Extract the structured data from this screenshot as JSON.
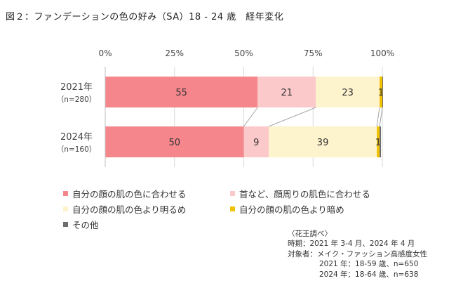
{
  "title": "図２：ファンデーションの色の好み（SA）18 - 24 歳　経年変化",
  "chart_data": {
    "type": "bar",
    "orientation": "horizontal",
    "stacked": true,
    "xlim": [
      0,
      100
    ],
    "x_ticks": [
      "0%",
      "25%",
      "50%",
      "75%",
      "100%"
    ],
    "tick_values": [
      0,
      25,
      50,
      75,
      100
    ],
    "categories": [
      {
        "year": "2021年",
        "n": "（n=280）"
      },
      {
        "year": "2024年",
        "n": "（n=160）"
      }
    ],
    "series": [
      {
        "name": "自分の顔の肌の色に合わせる",
        "color": "#f4868c",
        "values": [
          55,
          50
        ],
        "labels": [
          "55",
          "50"
        ]
      },
      {
        "name": "首など、顔周りの肌色に合わせる",
        "color": "#fcc9cb",
        "values": [
          21,
          9
        ],
        "labels": [
          "21",
          "9"
        ]
      },
      {
        "name": "自分の顔の肌の色より明るめ",
        "color": "#fdf3cd",
        "values": [
          23,
          39
        ],
        "labels": [
          "23",
          "39"
        ]
      },
      {
        "name": "自分の顔の肌の色より暗め",
        "color": "#f2c200",
        "values": [
          1,
          1
        ],
        "labels": [
          "1",
          "1"
        ]
      },
      {
        "name": "その他",
        "color": "#6e6e6e",
        "values": [
          0.5,
          0.5
        ],
        "labels": [
          "",
          ""
        ]
      }
    ]
  },
  "legend": [
    {
      "label": "自分の顔の肌の色に合わせる",
      "color": "#f4868c"
    },
    {
      "label": "首など、顔周りの肌色に合わせる",
      "color": "#fcc9cb"
    },
    {
      "label": "自分の顔の肌の色より明るめ",
      "color": "#fdf3cd"
    },
    {
      "label": "自分の顔の肌の色より暗め",
      "color": "#f2c200"
    },
    {
      "label": "その他",
      "color": "#6e6e6e"
    }
  ],
  "note": {
    "source": "〈花王調べ〉",
    "period": "時期：2021 年 3-4 月、2024 年 4 月",
    "target": "対象者：メイク・ファッション高感度女性",
    "sample_2021": "2021 年：18-59 歳、n=650",
    "sample_2024": "2024 年：18-64 歳、n=638"
  }
}
